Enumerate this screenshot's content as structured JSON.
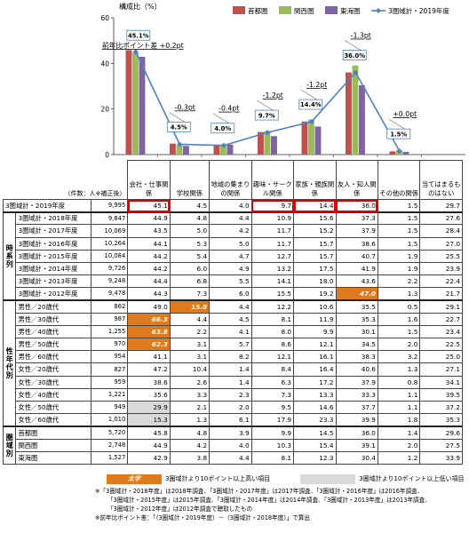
{
  "chart_data": {
    "type": "bar",
    "ylabel": "構成比（%）",
    "ylim": [
      0,
      60
    ],
    "yticks": [
      0,
      20,
      40,
      60
    ],
    "categories": [
      "会社・仕事関係",
      "学校関係",
      "地域の集まりの関係",
      "趣味・サークル関係",
      "家族・親族関係",
      "友人・知人関係",
      "その他の関係",
      "当てはまるものはない"
    ],
    "series": [
      {
        "name": "首都圏",
        "color": "#c0504d",
        "values": [
          45.8,
          4.8,
          3.9,
          9.9,
          14.5,
          36.0,
          1.4,
          null
        ]
      },
      {
        "name": "関西圏",
        "color": "#9bbb59",
        "values": [
          44.9,
          4.2,
          4.0,
          10.3,
          15.4,
          39.1,
          2.0,
          null
        ]
      },
      {
        "name": "東海圏",
        "color": "#8064a2",
        "values": [
          42.9,
          3.8,
          4.4,
          8.1,
          12.3,
          30.4,
          1.2,
          null
        ]
      },
      {
        "name": "3圏域計・2019年度",
        "color": "#4f81bd",
        "type": "line",
        "values": [
          45.1,
          4.5,
          4.0,
          9.7,
          14.4,
          36.0,
          1.5,
          null
        ]
      }
    ],
    "data_labels": [
      "45.1%",
      "4.5%",
      "4.0%",
      "9.7%",
      "14.4%",
      "36.0%",
      "1.5%"
    ],
    "diff_labels": [
      "前年比ポイント差 +0.2pt",
      "-0.3pt",
      "-0.4pt",
      "-1.2pt",
      "-1.2pt",
      "-1.3pt",
      "+0.0pt"
    ],
    "legend": "top-right"
  },
  "table": {
    "sample_header": "（件数：人※補正後）",
    "columns": [
      "会社・仕事関係",
      "学校関係",
      "地域の集まりの関係",
      "趣味・サークル関係",
      "家族・親族関係",
      "友人・知人関係",
      "その他の関係",
      "当てはまるものはない"
    ],
    "total_row": {
      "label": "3圏域計・2019年度",
      "n": "9,995",
      "values": [
        "45.1",
        "4.5",
        "4.0",
        "9.7",
        "14.4",
        "36.0",
        "1.5",
        "29.7"
      ]
    },
    "groups": [
      {
        "name": "時系列",
        "rows": [
          {
            "label": "3圏域計・2018年度",
            "n": "9,847",
            "values": [
              "44.9",
              "4.8",
              "4.4",
              "10.9",
              "15.6",
              "37.3",
              "1.5",
              "27.6"
            ]
          },
          {
            "label": "3圏域計・2017年度",
            "n": "10,069",
            "values": [
              "43.5",
              "5.0",
              "4.2",
              "11.7",
              "15.2",
              "37.9",
              "1.5",
              "28.4"
            ]
          },
          {
            "label": "3圏域計・2016年度",
            "n": "10,264",
            "values": [
              "44.1",
              "5.3",
              "5.0",
              "11.7",
              "15.7",
              "38.6",
              "1.5",
              "27.0"
            ]
          },
          {
            "label": "3圏域計・2015年度",
            "n": "10,084",
            "values": [
              "44.2",
              "5.4",
              "4.7",
              "12.7",
              "15.7",
              "40.7",
              "1.9",
              "25.5"
            ]
          },
          {
            "label": "3圏域計・2014年度",
            "n": "9,726",
            "values": [
              "44.2",
              "6.0",
              "4.9",
              "13.2",
              "17.5",
              "41.9",
              "1.9",
              "23.9"
            ]
          },
          {
            "label": "3圏域計・2013年度",
            "n": "9,248",
            "values": [
              "44.4",
              "6.8",
              "5.5",
              "14.1",
              "18.0",
              "43.6",
              "2.2",
              "22.4"
            ]
          },
          {
            "label": "3圏域計・2012年度",
            "n": "9,478",
            "values": [
              "44.3",
              "7.3",
              "6.0",
              "15.5",
              "19.2",
              "47.0",
              "1.3",
              "21.7"
            ]
          }
        ]
      },
      {
        "name": "性年代別",
        "rows": [
          {
            "label": "男性／20歳代",
            "n": "862",
            "values": [
              "49.0",
              "15.8",
              "4.4",
              "12.2",
              "10.6",
              "35.5",
              "0.5",
              "29.1"
            ]
          },
          {
            "label": "男性／30歳代",
            "n": "987",
            "values": [
              "66.3",
              "4.4",
              "4.5",
              "8.1",
              "11.9",
              "35.3",
              "1.6",
              "22.7"
            ]
          },
          {
            "label": "男性／40歳代",
            "n": "1,255",
            "values": [
              "63.8",
              "2.2",
              "4.1",
              "8.0",
              "9.9",
              "30.1",
              "1.5",
              "23.4"
            ]
          },
          {
            "label": "男性／50歳代",
            "n": "970",
            "values": [
              "62.3",
              "3.1",
              "5.7",
              "8.6",
              "12.1",
              "34.5",
              "2.0",
              "22.5"
            ]
          },
          {
            "label": "男性／60歳代",
            "n": "954",
            "values": [
              "41.1",
              "3.1",
              "8.2",
              "12.1",
              "16.1",
              "38.3",
              "3.2",
              "25.0"
            ]
          },
          {
            "label": "女性／20歳代",
            "n": "827",
            "values": [
              "47.2",
              "10.4",
              "1.4",
              "8.4",
              "16.4",
              "40.6",
              "1.3",
              "27.1"
            ]
          },
          {
            "label": "女性／30歳代",
            "n": "959",
            "values": [
              "38.6",
              "2.6",
              "1.4",
              "6.3",
              "17.2",
              "37.9",
              "0.8",
              "34.1"
            ]
          },
          {
            "label": "女性／40歳代",
            "n": "1,221",
            "values": [
              "35.6",
              "3.3",
              "2.3",
              "7.3",
              "13.3",
              "33.3",
              "1.1",
              "39.5"
            ]
          },
          {
            "label": "女性／50歳代",
            "n": "949",
            "values": [
              "29.9",
              "2.1",
              "2.0",
              "9.5",
              "14.6",
              "37.7",
              "1.1",
              "37.2"
            ]
          },
          {
            "label": "女性／60歳代",
            "n": "1,010",
            "values": [
              "15.3",
              "1.3",
              "6.1",
              "17.9",
              "23.3",
              "39.9",
              "1.8",
              "35.3"
            ]
          }
        ]
      },
      {
        "name": "圏域別",
        "rows": [
          {
            "label": "首都圏",
            "n": "5,720",
            "values": [
              "45.8",
              "4.8",
              "3.9",
              "9.9",
              "14.5",
              "36.0",
              "1.4",
              "29.6"
            ]
          },
          {
            "label": "関西圏",
            "n": "2,748",
            "values": [
              "44.9",
              "4.2",
              "4.0",
              "10.3",
              "15.4",
              "39.1",
              "2.0",
              "27.5"
            ]
          },
          {
            "label": "東海圏",
            "n": "1,527",
            "values": [
              "42.9",
              "3.8",
              "4.4",
              "8.1",
              "12.3",
              "30.4",
              "1.2",
              "33.9"
            ]
          }
        ]
      }
    ]
  },
  "highlight_legend": {
    "bold_label": "太字",
    "high_text": "3圏域計より10ポイント以上高い項目",
    "low_text": "3圏域計より10ポイント以上低い項目",
    "high_color": "#e07b1d",
    "low_color": "#d9d9d9"
  },
  "notes": [
    "※「3圏域計・2018年度」は2018年調査、「3圏域計・2017年度」は2017年調査、「3圏域計・2016年度」は2016年調査、",
    "「3圏域計・2015年度」は2015年調査、「3圏域計・2014年度」は2014年調査、「3圏域計・2013年度」は2013年調査、",
    "「3圏域計・2012年度」は2012年調査で聴取したもの",
    "※前年比ポイント差：「（3圏域計・2019年度）－（3圏域計・2018年度）」で算出"
  ]
}
